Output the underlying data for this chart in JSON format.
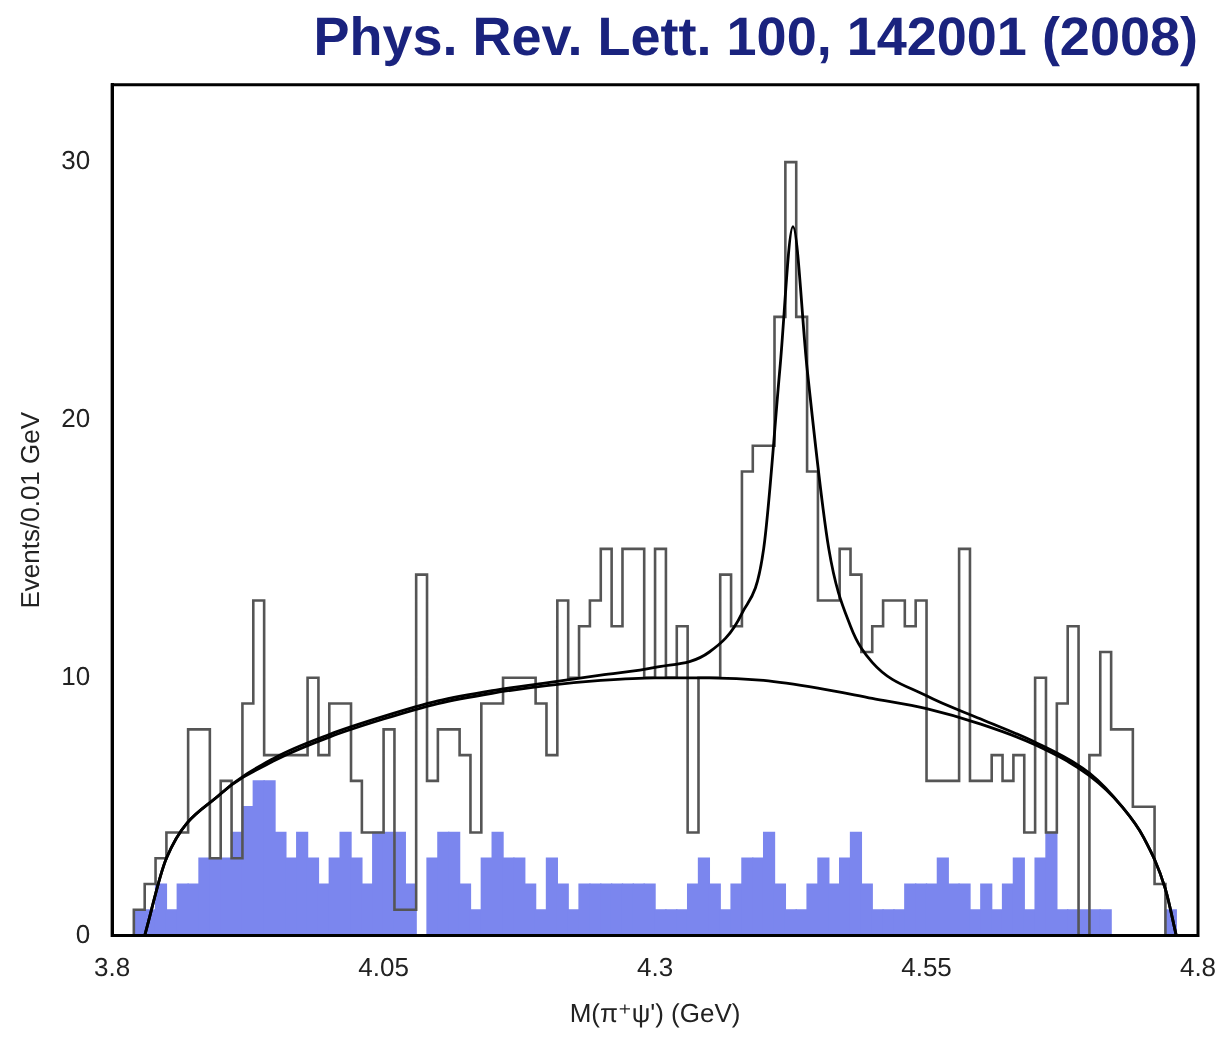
{
  "chart_data": {
    "type": "histogram",
    "title": "Phys. Rev. Lett. 100, 142001 (2008)",
    "xlabel": "M(π⁺ψ') (GeV)",
    "ylabel": "Events/0.01 GeV",
    "bins": [
      3.8,
      3.81,
      3.82,
      3.83,
      3.84,
      3.85,
      3.86,
      3.87,
      3.88,
      3.89,
      3.9,
      3.91,
      3.92,
      3.93,
      3.94,
      3.95,
      3.96,
      3.97,
      3.98,
      3.99,
      4.0,
      4.01,
      4.02,
      4.03,
      4.04,
      4.05,
      4.06,
      4.07,
      4.08,
      4.09,
      4.1,
      4.11,
      4.12,
      4.13,
      4.14,
      4.15,
      4.16,
      4.17,
      4.18,
      4.19,
      4.2,
      4.21,
      4.22,
      4.23,
      4.24,
      4.25,
      4.26,
      4.27,
      4.28,
      4.29,
      4.3,
      4.31,
      4.32,
      4.33,
      4.34,
      4.35,
      4.36,
      4.37,
      4.38,
      4.39,
      4.4,
      4.41,
      4.42,
      4.43,
      4.44,
      4.45,
      4.46,
      4.47,
      4.48,
      4.49,
      4.5,
      4.51,
      4.52,
      4.53,
      4.54,
      4.55,
      4.56,
      4.57,
      4.58,
      4.59,
      4.6,
      4.61,
      4.62,
      4.63,
      4.64,
      4.65,
      4.66,
      4.67,
      4.68,
      4.69,
      4.7,
      4.71,
      4.72,
      4.73,
      4.74,
      4.75,
      4.76,
      4.77,
      4.78,
      4.79,
      4.8
    ],
    "series": [
      {
        "color": "#7b86ee",
        "values": [
          0,
          0,
          1,
          1,
          2,
          1,
          2,
          2,
          3,
          3,
          3,
          4,
          5,
          6,
          6,
          4,
          3,
          4,
          3,
          2,
          3,
          4,
          3,
          2,
          4,
          4,
          4,
          2,
          0,
          3,
          4,
          4,
          2,
          1,
          3,
          4,
          3,
          3,
          2,
          1,
          3,
          2,
          1,
          2,
          2,
          2,
          2,
          2,
          2,
          2,
          1,
          1,
          1,
          2,
          3,
          2,
          1,
          2,
          3,
          3,
          4,
          2,
          1,
          1,
          2,
          3,
          2,
          3,
          4,
          2,
          1,
          1,
          1,
          2,
          2,
          2,
          3,
          2,
          2,
          1,
          2,
          1,
          2,
          3,
          1,
          3,
          4,
          1,
          1,
          1,
          1,
          1,
          0,
          0,
          0,
          0,
          0,
          1,
          0,
          0
        ]
      },
      {
        "type": "step",
        "color": "#555555",
        "x": [
          3.805,
          3.815,
          3.825,
          3.835,
          3.845,
          3.855,
          3.865,
          3.875,
          3.885,
          3.895,
          3.905,
          3.915,
          3.925,
          3.935,
          3.945,
          3.955,
          3.965,
          3.975,
          3.985,
          3.995,
          4.005,
          4.015,
          4.025,
          4.035,
          4.045,
          4.055,
          4.065,
          4.075,
          4.085,
          4.095,
          4.105,
          4.115,
          4.125,
          4.135,
          4.145,
          4.155,
          4.165,
          4.175,
          4.185,
          4.195,
          4.205,
          4.215,
          4.225,
          4.235,
          4.245,
          4.255,
          4.265,
          4.275,
          4.285,
          4.295,
          4.305,
          4.315,
          4.325,
          4.335,
          4.345,
          4.355,
          4.365,
          4.375,
          4.385,
          4.395,
          4.405,
          4.415,
          4.425,
          4.435,
          4.445,
          4.455,
          4.465,
          4.475,
          4.485,
          4.495,
          4.505,
          4.515,
          4.525,
          4.535,
          4.545,
          4.555,
          4.565,
          4.575,
          4.585,
          4.595,
          4.605,
          4.615,
          4.625,
          4.635,
          4.645,
          4.655,
          4.665,
          4.675,
          4.685,
          4.695,
          4.705,
          4.715,
          4.725,
          4.735,
          4.745,
          4.755,
          4.765,
          4.775,
          4.785,
          4.795
        ],
        "values": [
          0,
          0,
          1,
          2,
          3,
          4,
          4,
          8,
          8,
          3,
          6,
          3,
          9,
          13,
          7,
          7,
          7,
          7,
          10,
          7,
          9,
          9,
          6,
          4,
          4,
          8,
          1,
          1,
          14,
          6,
          8,
          8,
          7,
          4,
          9,
          9,
          10,
          10,
          10,
          9,
          7,
          13,
          10,
          12,
          13,
          15,
          12,
          15,
          15,
          10,
          15,
          10,
          12,
          4,
          10,
          10,
          14,
          12,
          18,
          19,
          19,
          24,
          30,
          24,
          18,
          13,
          13,
          15,
          14,
          11,
          12,
          13,
          13,
          12,
          13,
          6,
          6,
          6,
          15,
          6,
          6,
          7,
          6,
          7,
          4,
          10,
          4,
          9,
          12,
          0,
          7,
          11,
          8,
          8,
          5,
          5,
          2,
          0,
          0,
          0
        ]
      },
      {
        "type": "line",
        "color": "#000000",
        "x": [
          3.83,
          3.85,
          3.9,
          3.95,
          4.0,
          4.05,
          4.1,
          4.15,
          4.2,
          4.25,
          4.3,
          4.35,
          4.4,
          4.45,
          4.5,
          4.55,
          4.6,
          4.65,
          4.7,
          4.73,
          4.75,
          4.77,
          4.78
        ],
        "values": [
          0,
          3,
          5.5,
          6.8,
          7.7,
          8.4,
          9,
          9.4,
          9.7,
          9.9,
          10,
          10,
          9.9,
          9.6,
          9.2,
          8.8,
          8.2,
          7.4,
          6.2,
          5,
          3.8,
          1.8,
          0
        ]
      },
      {
        "type": "line",
        "color": "#000000",
        "x": [
          3.83,
          3.85,
          3.9,
          3.95,
          4.0,
          4.05,
          4.1,
          4.15,
          4.2,
          4.25,
          4.3,
          4.35,
          4.38,
          4.4,
          4.415,
          4.427,
          4.44,
          4.46,
          4.48,
          4.5,
          4.55,
          4.6,
          4.65,
          4.7,
          4.73,
          4.75,
          4.77,
          4.78
        ],
        "values": [
          0,
          3,
          5.5,
          6.9,
          7.8,
          8.5,
          9.1,
          9.5,
          9.8,
          10.1,
          10.4,
          11,
          12.5,
          15,
          22,
          27.5,
          22,
          15,
          12,
          10.6,
          9.3,
          8.4,
          7.5,
          6.3,
          5,
          3.8,
          1.8,
          0
        ]
      }
    ],
    "xlim": [
      3.8,
      4.8
    ],
    "ylim": [
      0,
      33
    ],
    "xticks": [
      3.8,
      4.05,
      4.3,
      4.55,
      4.8
    ],
    "yticks": [
      0,
      10,
      20,
      30
    ]
  }
}
